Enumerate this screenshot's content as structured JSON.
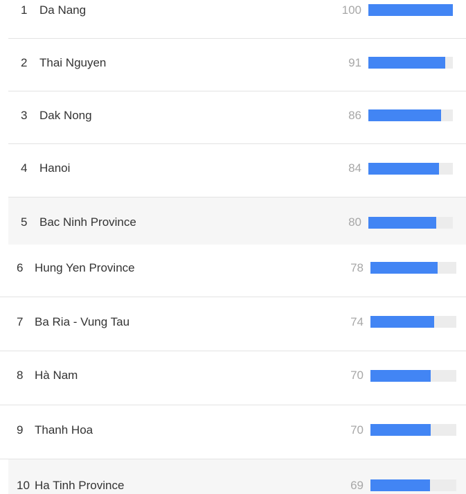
{
  "rows": [
    {
      "rank": "1",
      "name": "Da Nang",
      "value": "100"
    },
    {
      "rank": "2",
      "name": "Thai Nguyen",
      "value": "91"
    },
    {
      "rank": "3",
      "name": "Dak Nong",
      "value": "86"
    },
    {
      "rank": "4",
      "name": "Hanoi",
      "value": "84"
    },
    {
      "rank": "5",
      "name": "Bac Ninh Province",
      "value": "80"
    },
    {
      "rank": "6",
      "name": "Hung Yen Province",
      "value": "78"
    },
    {
      "rank": "7",
      "name": "Ba Ria - Vung Tau",
      "value": "74"
    },
    {
      "rank": "8",
      "name": "Hà Nam",
      "value": "70"
    },
    {
      "rank": "9",
      "name": "Thanh Hoa",
      "value": "70"
    },
    {
      "rank": "10",
      "name": "Ha Tinh Province",
      "value": "69"
    }
  ],
  "colors": {
    "bar": "#4285f4",
    "track": "#ececec",
    "value_text": "#a7a7a7",
    "highlight": "#f6f6f6"
  }
}
